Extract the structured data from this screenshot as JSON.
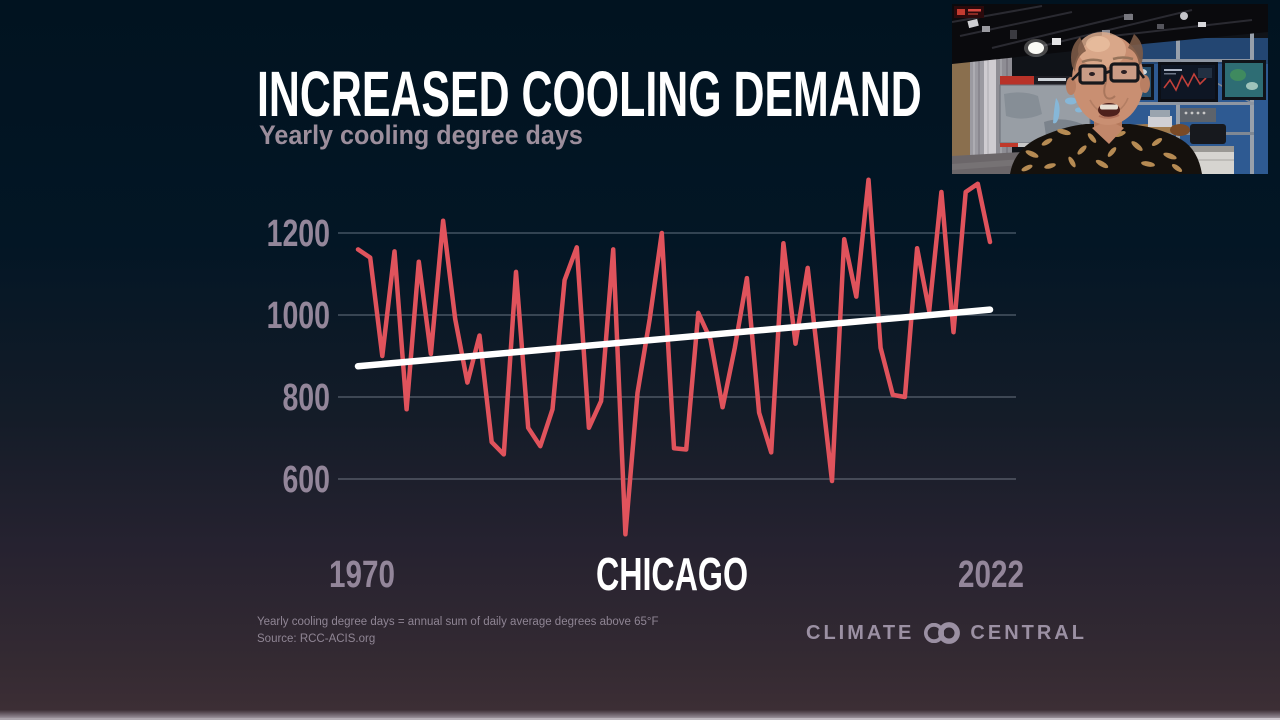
{
  "slide": {
    "title": "INCREASED COOLING DEMAND",
    "subtitle": "Yearly cooling degree days",
    "footnote_line1": "Yearly cooling degree days = annual sum of daily average degrees above 65°F",
    "footnote_line2": "Source: RCC-ACIS.org",
    "brand_left": "CLIMATE",
    "brand_right": "CENTRAL"
  },
  "chart_data": {
    "type": "line",
    "title": "INCREASED COOLING DEMAND",
    "subtitle": "Yearly cooling degree days",
    "location_label": "CHICAGO",
    "xlabel": "",
    "ylabel": "Yearly cooling degree days",
    "grid": true,
    "legend_position": "none",
    "x_range": [
      1970,
      2022
    ],
    "xtick_labels": [
      "1970",
      "2022"
    ],
    "yticks": [
      600,
      800,
      1000,
      1200
    ],
    "ylim": [
      430,
      1390
    ],
    "x": [
      1970,
      1971,
      1972,
      1973,
      1974,
      1975,
      1976,
      1977,
      1978,
      1979,
      1980,
      1981,
      1982,
      1983,
      1984,
      1985,
      1986,
      1987,
      1988,
      1989,
      1990,
      1991,
      1992,
      1993,
      1994,
      1995,
      1996,
      1997,
      1998,
      1999,
      2000,
      2001,
      2002,
      2003,
      2004,
      2005,
      2006,
      2007,
      2008,
      2009,
      2010,
      2011,
      2012,
      2013,
      2014,
      2015,
      2016,
      2017,
      2018,
      2019,
      2020,
      2021,
      2022
    ],
    "series": [
      {
        "name": "Yearly cooling degree days",
        "color": "#e0535c",
        "values": [
          1160,
          1140,
          900,
          1155,
          770,
          1130,
          905,
          1230,
          990,
          835,
          950,
          690,
          660,
          1105,
          725,
          680,
          770,
          1085,
          1165,
          725,
          790,
          1160,
          465,
          810,
          990,
          1200,
          675,
          672,
          1005,
          940,
          775,
          920,
          1090,
          762,
          665,
          1175,
          930,
          1115,
          855,
          595,
          1185,
          1045,
          1330,
          920,
          805,
          800,
          1163,
          1010,
          1300,
          958,
          1300,
          1320,
          1178
        ]
      }
    ],
    "trendline": {
      "name": "Linear trend",
      "color": "#ffffff",
      "start": {
        "x": 1970,
        "y": 875
      },
      "end": {
        "x": 2022,
        "y": 1013
      }
    }
  },
  "video_overlay": {
    "kind": "webcam",
    "scene": "presenter in TV weather studio"
  },
  "colors": {
    "background_top": "#011320",
    "background_bottom": "#3c2e35",
    "line_red": "#e0535c",
    "trend_white": "#ffffff",
    "axis_label": "#93869a",
    "gridline": "rgba(196,205,218,0.40)",
    "subtitle": "#9c8e9c",
    "footnote": "#8f8594",
    "logo": "#9b90a3"
  }
}
